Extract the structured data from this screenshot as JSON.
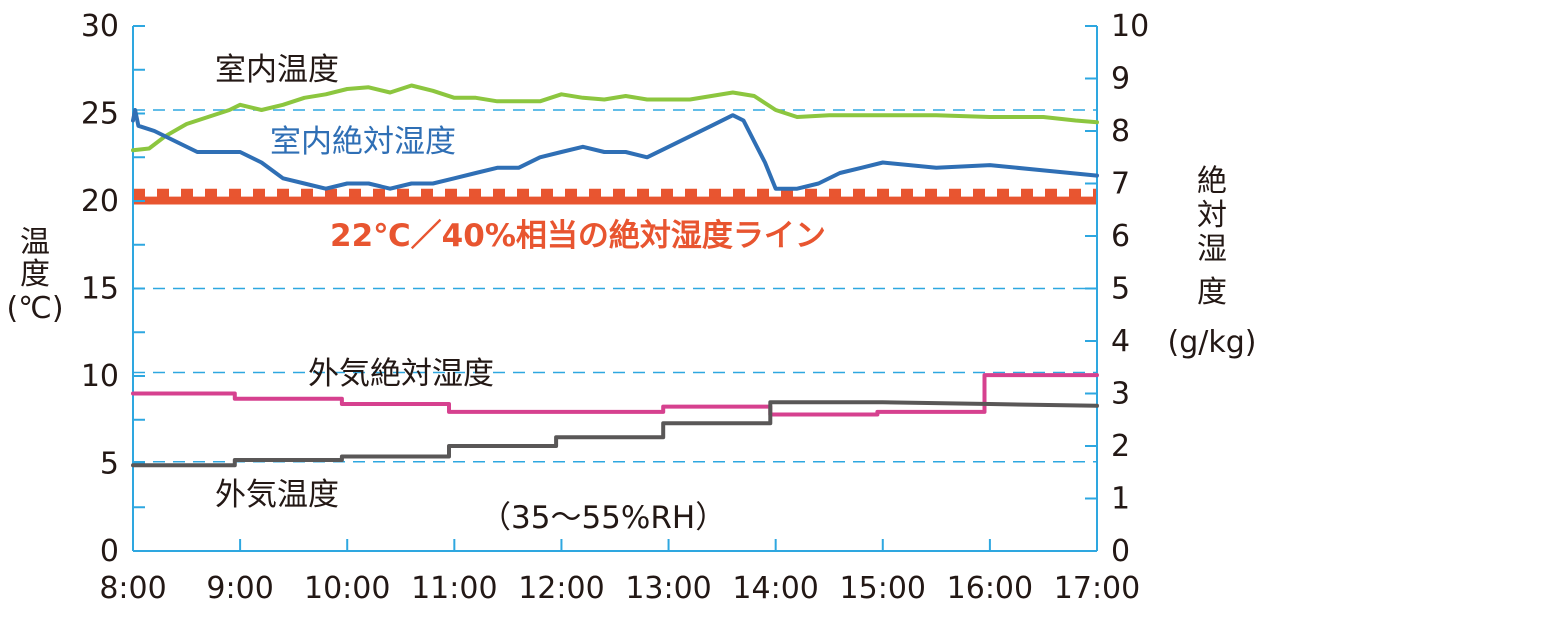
{
  "chart_data": {
    "type": "line",
    "x_labels": [
      "8:00",
      "9:00",
      "10:00",
      "11:00",
      "12:00",
      "13:00",
      "14:00",
      "15:00",
      "16:00",
      "17:00"
    ],
    "xlim": [
      8,
      17
    ],
    "y_left": {
      "label": "温度(℃)",
      "label_lines": [
        "温",
        "度",
        "(℃)"
      ],
      "ticks": [
        0,
        5,
        10,
        15,
        20,
        25,
        30
      ],
      "ylim": [
        0,
        30
      ]
    },
    "y_right": {
      "label": "絶対湿度(g/kg)",
      "label_lines": [
        "絶",
        "対",
        "湿",
        "度",
        "(g/kg)"
      ],
      "ticks": [
        0,
        1,
        2,
        3,
        4,
        5,
        6,
        7,
        8,
        9,
        10
      ],
      "ylim": [
        0,
        10
      ]
    },
    "grid_dashed_right": [
      1.7,
      3.4,
      5.0,
      8.4
    ],
    "reference_band": {
      "label": "22℃／40%相当の絶対湿度ライン",
      "band_right": [
        6.6,
        6.9
      ],
      "color": "#e85530"
    },
    "series": [
      {
        "name": "室内温度",
        "axis": "left",
        "color": "#8cc63f",
        "x": [
          8.0,
          8.15,
          8.3,
          8.5,
          8.7,
          8.9,
          9.0,
          9.2,
          9.4,
          9.6,
          9.8,
          10.0,
          10.2,
          10.4,
          10.6,
          10.8,
          11.0,
          11.2,
          11.4,
          11.6,
          11.8,
          12.0,
          12.2,
          12.4,
          12.6,
          12.8,
          13.0,
          13.2,
          13.4,
          13.6,
          13.8,
          14.0,
          14.2,
          14.5,
          15.0,
          15.5,
          16.0,
          16.5,
          16.8,
          17.0
        ],
        "y": [
          22.9,
          23.0,
          23.7,
          24.4,
          24.8,
          25.2,
          25.5,
          25.2,
          25.5,
          25.9,
          26.1,
          26.4,
          26.5,
          26.2,
          26.6,
          26.3,
          25.9,
          25.9,
          25.7,
          25.7,
          25.7,
          26.1,
          25.9,
          25.8,
          26.0,
          25.8,
          25.8,
          25.8,
          26.0,
          26.2,
          26.0,
          25.2,
          24.8,
          24.9,
          24.9,
          24.9,
          24.8,
          24.8,
          24.6,
          24.5
        ]
      },
      {
        "name": "室内絶対湿度",
        "axis": "right",
        "color": "#2f6fb5",
        "x": [
          8.0,
          8.02,
          8.05,
          8.2,
          8.4,
          8.6,
          8.8,
          9.0,
          9.2,
          9.4,
          9.6,
          9.8,
          10.0,
          10.2,
          10.4,
          10.6,
          10.8,
          11.0,
          11.2,
          11.4,
          11.6,
          11.8,
          12.0,
          12.2,
          12.4,
          12.6,
          12.8,
          13.0,
          13.2,
          13.4,
          13.6,
          13.7,
          13.8,
          13.9,
          14.0,
          14.2,
          14.4,
          14.6,
          14.8,
          15.0,
          15.5,
          16.0,
          16.5,
          17.0
        ],
        "y": [
          8.2,
          8.4,
          8.1,
          8.0,
          7.8,
          7.6,
          7.6,
          7.6,
          7.4,
          7.1,
          7.0,
          6.9,
          7.0,
          7.0,
          6.9,
          7.0,
          7.0,
          7.1,
          7.2,
          7.3,
          7.3,
          7.5,
          7.6,
          7.7,
          7.6,
          7.6,
          7.5,
          7.7,
          7.9,
          8.1,
          8.3,
          8.2,
          7.8,
          7.4,
          6.9,
          6.9,
          7.0,
          7.2,
          7.3,
          7.4,
          7.3,
          7.35,
          7.25,
          7.15
        ]
      },
      {
        "name": "外気絶対湿度",
        "axis": "right",
        "color": "#d6418f",
        "x": [
          8.0,
          8.95,
          8.95,
          9.95,
          9.95,
          10.95,
          10.95,
          11.95,
          11.95,
          12.95,
          12.95,
          13.95,
          13.95,
          14.95,
          14.95,
          15.95,
          15.95,
          17.0
        ],
        "y": [
          3.0,
          3.0,
          2.9,
          2.9,
          2.8,
          2.8,
          2.65,
          2.65,
          2.65,
          2.65,
          2.75,
          2.75,
          2.6,
          2.6,
          2.65,
          2.65,
          3.35,
          3.35
        ]
      },
      {
        "name": "外気温度",
        "axis": "left",
        "color": "#595757",
        "x": [
          8.0,
          8.95,
          8.95,
          9.95,
          9.95,
          10.95,
          10.95,
          11.95,
          11.95,
          12.95,
          12.95,
          13.95,
          13.95,
          15.0,
          16.0,
          17.0
        ],
        "y": [
          4.9,
          4.9,
          5.2,
          5.2,
          5.4,
          5.4,
          6.0,
          6.0,
          6.5,
          6.5,
          7.3,
          7.3,
          8.5,
          8.5,
          8.4,
          8.3
        ]
      }
    ],
    "annotations": {
      "indoor_temp": "室内温度",
      "indoor_abs_humidity": "室内絶対湿度",
      "outdoor_abs_humidity": "外気絶対湿度",
      "outdoor_temp": "外気温度",
      "rh_range": "（35～55%RH）"
    },
    "colors": {
      "axis": "#2ea7e0",
      "grid": "#2ea7e0",
      "text": "#231815"
    },
    "legend": "inline"
  }
}
